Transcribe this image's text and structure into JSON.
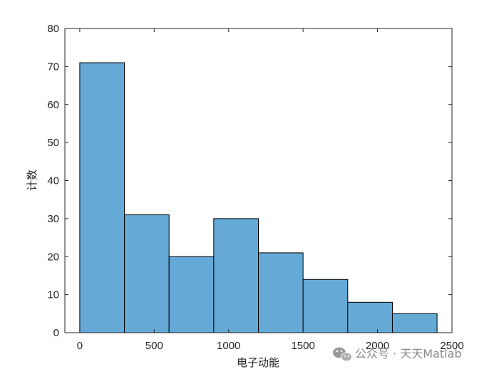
{
  "chart_data": {
    "type": "bar",
    "subtype": "histogram",
    "bin_edges": [
      0,
      300,
      600,
      900,
      1200,
      1500,
      1800,
      2100,
      2400
    ],
    "values": [
      71,
      31,
      20,
      30,
      21,
      14,
      8,
      5
    ],
    "xlabel": "电子动能",
    "ylabel": "计数",
    "xlim": [
      -100,
      2500
    ],
    "ylim": [
      0,
      80
    ],
    "xticks": [
      0,
      500,
      1000,
      1500,
      2000,
      2500
    ],
    "yticks": [
      0,
      10,
      20,
      30,
      40,
      50,
      60,
      70,
      80
    ],
    "bar_color": "#65a9d7",
    "edge_color": "#000000",
    "grid": false
  },
  "watermark": {
    "text": "公众号 · 天天Matlab",
    "icon": "wechat-icon",
    "color": "#8a8a8a"
  }
}
